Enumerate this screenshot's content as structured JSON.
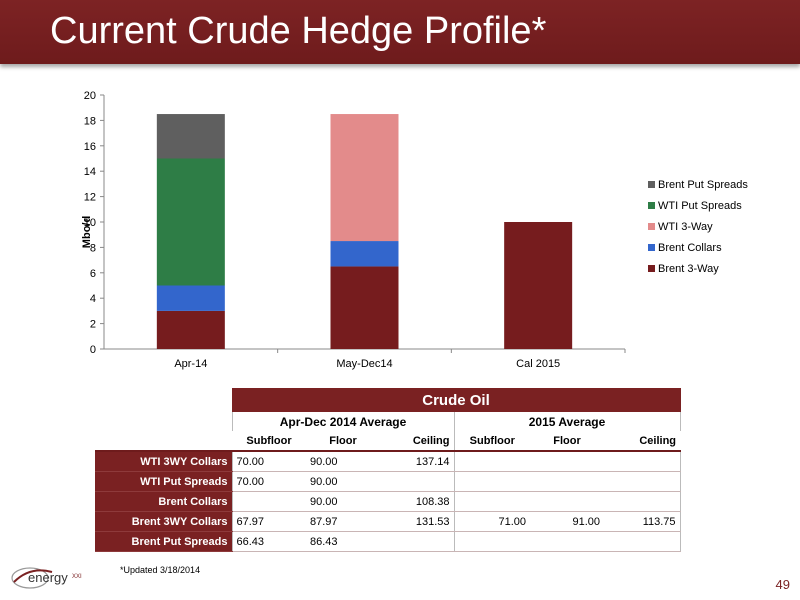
{
  "slide": {
    "title": "Current Crude Hedge Profile*",
    "footnote": "*Updated 3/18/2014",
    "page_number": "49",
    "logo_text": "energy",
    "logo_suffix": "XXI"
  },
  "colors": {
    "brand": "#7a2122",
    "Brent 3-Way": "#761c1e",
    "Brent Collars": "#3366cc",
    "WTI 3-Way": "#e38b8b",
    "WTI Put Spreads": "#2e7d46",
    "Brent Put Spreads": "#5f5f5f"
  },
  "chart_data": {
    "type": "bar",
    "stacked": true,
    "categories": [
      "Apr-14",
      "May-Dec14",
      "Cal 2015"
    ],
    "series": [
      {
        "name": "Brent 3-Way",
        "values": [
          3,
          6.5,
          10
        ]
      },
      {
        "name": "Brent Collars",
        "values": [
          2,
          2,
          0
        ]
      },
      {
        "name": "WTI 3-Way",
        "values": [
          0,
          10,
          0
        ]
      },
      {
        "name": "WTI Put Spreads",
        "values": [
          10,
          0,
          0
        ]
      },
      {
        "name": "Brent Put Spreads",
        "values": [
          3.5,
          0,
          0
        ]
      }
    ],
    "legend_order": [
      "Brent Put Spreads",
      "WTI Put Spreads",
      "WTI 3-Way",
      "Brent Collars",
      "Brent 3-Way"
    ],
    "ylabel": "Mbo/d",
    "ylim": [
      0,
      20
    ],
    "yticks": [
      "0",
      "2",
      "4",
      "6",
      "8",
      "10",
      "12",
      "14",
      "16",
      "18",
      "20"
    ],
    "grid": false,
    "legend_position": "right"
  },
  "table": {
    "title": "Crude Oil",
    "groups": [
      "Apr-Dec 2014 Average",
      "2015 Average"
    ],
    "subheaders": [
      "Subfloor",
      "Floor",
      "Ceiling",
      "Subfloor",
      "Floor",
      "Ceiling"
    ],
    "rows": [
      {
        "label": "WTI 3WY Collars",
        "cells": [
          "70.00",
          "90.00",
          "137.14",
          "",
          "",
          ""
        ]
      },
      {
        "label": "WTI Put Spreads",
        "cells": [
          "70.00",
          "90.00",
          "",
          "",
          "",
          ""
        ]
      },
      {
        "label": "Brent Collars",
        "cells": [
          "",
          "90.00",
          "108.38",
          "",
          "",
          ""
        ]
      },
      {
        "label": "Brent 3WY Collars",
        "cells": [
          "67.97",
          "87.97",
          "131.53",
          "71.00",
          "91.00",
          "113.75"
        ]
      },
      {
        "label": "Brent Put Spreads",
        "cells": [
          "66.43",
          "86.43",
          "",
          "",
          "",
          ""
        ]
      }
    ]
  }
}
